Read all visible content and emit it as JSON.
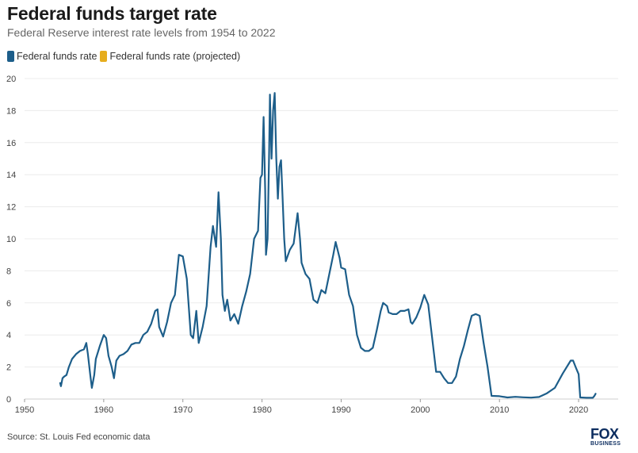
{
  "header": {
    "title": "Federal funds target rate",
    "subtitle": "Federal Reserve interest rate levels from 1954 to 2022"
  },
  "legend": [
    {
      "label": "Federal funds rate",
      "color": "#1d5e8a"
    },
    {
      "label": "Federal funds rate (projected)",
      "color": "#e6ad1e"
    }
  ],
  "footer": {
    "source": "Source: St. Louis Fed economic data",
    "logo_top": "FOX",
    "logo_bottom": "BUSINESS"
  },
  "chart_data": {
    "type": "line",
    "xlabel": "",
    "ylabel": "",
    "xlim": [
      1950,
      2025
    ],
    "ylim": [
      0,
      20
    ],
    "x_ticks": [
      1950,
      1960,
      1970,
      1980,
      1990,
      2000,
      2010,
      2020
    ],
    "y_ticks": [
      0,
      2,
      4,
      6,
      8,
      10,
      12,
      14,
      16,
      18,
      20
    ],
    "grid": "horizontal",
    "series": [
      {
        "name": "Federal funds rate",
        "color": "#1d5e8a",
        "points": [
          [
            1954.5,
            1.0
          ],
          [
            1954.6,
            0.8
          ],
          [
            1954.8,
            1.3
          ],
          [
            1955.0,
            1.4
          ],
          [
            1955.3,
            1.5
          ],
          [
            1955.6,
            2.0
          ],
          [
            1956.0,
            2.5
          ],
          [
            1956.5,
            2.8
          ],
          [
            1957.0,
            3.0
          ],
          [
            1957.5,
            3.1
          ],
          [
            1957.8,
            3.5
          ],
          [
            1958.0,
            2.8
          ],
          [
            1958.3,
            1.5
          ],
          [
            1958.5,
            0.7
          ],
          [
            1958.8,
            1.5
          ],
          [
            1959.0,
            2.5
          ],
          [
            1959.5,
            3.3
          ],
          [
            1960.0,
            4.0
          ],
          [
            1960.3,
            3.8
          ],
          [
            1960.6,
            2.7
          ],
          [
            1961.0,
            2.0
          ],
          [
            1961.3,
            1.3
          ],
          [
            1961.6,
            2.4
          ],
          [
            1962.0,
            2.7
          ],
          [
            1962.5,
            2.8
          ],
          [
            1963.0,
            3.0
          ],
          [
            1963.5,
            3.4
          ],
          [
            1964.0,
            3.5
          ],
          [
            1964.5,
            3.5
          ],
          [
            1965.0,
            4.0
          ],
          [
            1965.5,
            4.2
          ],
          [
            1966.0,
            4.7
          ],
          [
            1966.5,
            5.5
          ],
          [
            1966.8,
            5.6
          ],
          [
            1967.0,
            4.5
          ],
          [
            1967.5,
            3.9
          ],
          [
            1968.0,
            4.8
          ],
          [
            1968.5,
            6.0
          ],
          [
            1969.0,
            6.5
          ],
          [
            1969.5,
            9.0
          ],
          [
            1970.0,
            8.9
          ],
          [
            1970.5,
            7.5
          ],
          [
            1971.0,
            4.0
          ],
          [
            1971.3,
            3.8
          ],
          [
            1971.7,
            5.5
          ],
          [
            1972.0,
            3.5
          ],
          [
            1972.5,
            4.5
          ],
          [
            1973.0,
            5.8
          ],
          [
            1973.5,
            9.5
          ],
          [
            1973.8,
            10.8
          ],
          [
            1974.2,
            9.5
          ],
          [
            1974.5,
            12.9
          ],
          [
            1974.8,
            10.0
          ],
          [
            1975.0,
            6.5
          ],
          [
            1975.3,
            5.5
          ],
          [
            1975.6,
            6.2
          ],
          [
            1976.0,
            4.9
          ],
          [
            1976.5,
            5.3
          ],
          [
            1977.0,
            4.7
          ],
          [
            1977.5,
            5.8
          ],
          [
            1978.0,
            6.7
          ],
          [
            1978.5,
            7.8
          ],
          [
            1979.0,
            10.0
          ],
          [
            1979.5,
            10.5
          ],
          [
            1979.8,
            13.8
          ],
          [
            1980.0,
            14.0
          ],
          [
            1980.2,
            17.6
          ],
          [
            1980.4,
            13.0
          ],
          [
            1980.5,
            9.0
          ],
          [
            1980.7,
            10.0
          ],
          [
            1980.9,
            15.5
          ],
          [
            1981.0,
            19.0
          ],
          [
            1981.2,
            15.0
          ],
          [
            1981.4,
            18.0
          ],
          [
            1981.6,
            19.1
          ],
          [
            1981.8,
            15.0
          ],
          [
            1982.0,
            12.5
          ],
          [
            1982.2,
            14.5
          ],
          [
            1982.4,
            14.9
          ],
          [
            1982.6,
            12.5
          ],
          [
            1982.8,
            10.0
          ],
          [
            1983.0,
            8.6
          ],
          [
            1983.5,
            9.3
          ],
          [
            1984.0,
            9.7
          ],
          [
            1984.5,
            11.6
          ],
          [
            1984.8,
            10.0
          ],
          [
            1985.0,
            8.5
          ],
          [
            1985.5,
            7.8
          ],
          [
            1986.0,
            7.5
          ],
          [
            1986.5,
            6.2
          ],
          [
            1987.0,
            6.0
          ],
          [
            1987.5,
            6.8
          ],
          [
            1988.0,
            6.6
          ],
          [
            1988.5,
            7.8
          ],
          [
            1989.0,
            9.0
          ],
          [
            1989.3,
            9.8
          ],
          [
            1989.8,
            8.8
          ],
          [
            1990.0,
            8.2
          ],
          [
            1990.5,
            8.1
          ],
          [
            1991.0,
            6.5
          ],
          [
            1991.5,
            5.8
          ],
          [
            1992.0,
            4.0
          ],
          [
            1992.5,
            3.2
          ],
          [
            1993.0,
            3.0
          ],
          [
            1993.5,
            3.0
          ],
          [
            1994.0,
            3.2
          ],
          [
            1994.5,
            4.3
          ],
          [
            1995.0,
            5.5
          ],
          [
            1995.3,
            6.0
          ],
          [
            1995.8,
            5.8
          ],
          [
            1996.0,
            5.4
          ],
          [
            1996.5,
            5.3
          ],
          [
            1997.0,
            5.3
          ],
          [
            1997.5,
            5.5
          ],
          [
            1998.0,
            5.5
          ],
          [
            1998.5,
            5.6
          ],
          [
            1998.8,
            4.8
          ],
          [
            1999.0,
            4.7
          ],
          [
            1999.5,
            5.1
          ],
          [
            2000.0,
            5.7
          ],
          [
            2000.5,
            6.5
          ],
          [
            2001.0,
            5.9
          ],
          [
            2001.5,
            3.8
          ],
          [
            2002.0,
            1.7
          ],
          [
            2002.5,
            1.7
          ],
          [
            2003.0,
            1.3
          ],
          [
            2003.5,
            1.0
          ],
          [
            2004.0,
            1.0
          ],
          [
            2004.5,
            1.4
          ],
          [
            2005.0,
            2.5
          ],
          [
            2005.5,
            3.3
          ],
          [
            2006.0,
            4.3
          ],
          [
            2006.5,
            5.2
          ],
          [
            2007.0,
            5.3
          ],
          [
            2007.5,
            5.2
          ],
          [
            2008.0,
            3.5
          ],
          [
            2008.5,
            2.0
          ],
          [
            2009.0,
            0.2
          ],
          [
            2010.0,
            0.18
          ],
          [
            2011.0,
            0.1
          ],
          [
            2012.0,
            0.14
          ],
          [
            2013.0,
            0.11
          ],
          [
            2014.0,
            0.09
          ],
          [
            2015.0,
            0.13
          ],
          [
            2016.0,
            0.36
          ],
          [
            2017.0,
            0.7
          ],
          [
            2018.0,
            1.6
          ],
          [
            2019.0,
            2.4
          ],
          [
            2019.3,
            2.4
          ],
          [
            2019.7,
            1.9
          ],
          [
            2020.0,
            1.55
          ],
          [
            2020.2,
            0.1
          ],
          [
            2021.0,
            0.08
          ],
          [
            2021.8,
            0.08
          ],
          [
            2022.0,
            0.2
          ],
          [
            2022.15,
            0.33
          ]
        ]
      },
      {
        "name": "Federal funds rate (projected)",
        "color": "#e6ad1e",
        "points": []
      }
    ]
  }
}
